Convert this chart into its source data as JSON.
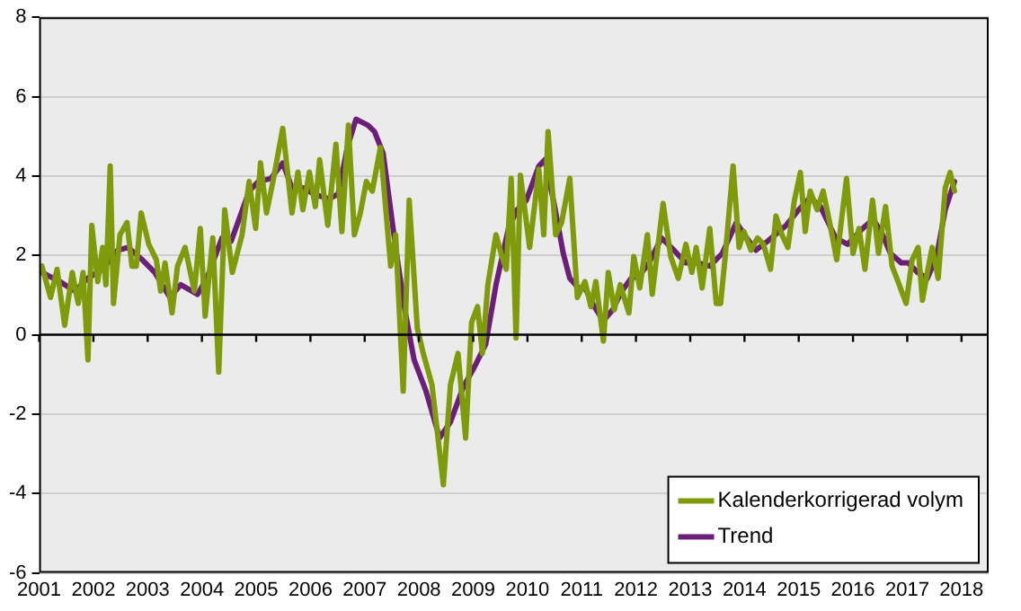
{
  "chart_data": {
    "type": "line",
    "xlim": [
      2001,
      2018.5
    ],
    "xticks": [
      2001,
      2002,
      2003,
      2004,
      2005,
      2006,
      2007,
      2008,
      2009,
      2010,
      2011,
      2012,
      2013,
      2014,
      2015,
      2016,
      2017,
      2018
    ],
    "ylim": [
      -6,
      8
    ],
    "yticks": [
      -6,
      -4,
      -2,
      0,
      2,
      4,
      6,
      8
    ],
    "grid": "y",
    "legend": "bottom right",
    "marker": "none",
    "line_style": "solid",
    "ref_lines": [
      {
        "axis": "y",
        "value": 0,
        "color": "#000000"
      }
    ],
    "series": [
      {
        "name": "Kalenderkorrigerad volym",
        "color": "#7f9a0a",
        "x": [
          2001.05,
          2001.21,
          2001.33,
          2001.47,
          2001.61,
          2001.72,
          2001.81,
          2001.9,
          2001.97,
          2002.08,
          2002.17,
          2002.23,
          2002.31,
          2002.37,
          2002.49,
          2002.62,
          2002.71,
          2002.79,
          2002.88,
          2003.02,
          2003.16,
          2003.24,
          2003.32,
          2003.45,
          2003.55,
          2003.69,
          2003.86,
          2003.97,
          2004.06,
          2004.2,
          2004.31,
          2004.42,
          2004.56,
          2004.74,
          2004.87,
          2004.99,
          2005.08,
          2005.19,
          2005.32,
          2005.49,
          2005.66,
          2005.77,
          2005.86,
          2005.98,
          2006.09,
          2006.17,
          2006.32,
          2006.47,
          2006.58,
          2006.7,
          2006.81,
          2006.92,
          2007.03,
          2007.14,
          2007.29,
          2007.48,
          2007.57,
          2007.71,
          2007.82,
          2007.97,
          2008.08,
          2008.24,
          2008.45,
          2008.58,
          2008.72,
          2008.86,
          2008.97,
          2009.08,
          2009.17,
          2009.27,
          2009.42,
          2009.53,
          2009.61,
          2009.7,
          2009.79,
          2009.87,
          2010.04,
          2010.21,
          2010.3,
          2010.38,
          2010.52,
          2010.63,
          2010.78,
          2010.92,
          2011.06,
          2011.17,
          2011.26,
          2011.4,
          2011.49,
          2011.6,
          2011.71,
          2011.87,
          2011.96,
          2012.07,
          2012.21,
          2012.3,
          2012.5,
          2012.64,
          2012.78,
          2012.92,
          2013.03,
          2013.11,
          2013.22,
          2013.36,
          2013.48,
          2013.56,
          2013.65,
          2013.79,
          2013.9,
          2013.99,
          2014.12,
          2014.24,
          2014.35,
          2014.48,
          2014.58,
          2014.69,
          2014.8,
          2014.92,
          2015.03,
          2015.12,
          2015.21,
          2015.34,
          2015.45,
          2015.57,
          2015.7,
          2015.88,
          2016.0,
          2016.11,
          2016.22,
          2016.36,
          2016.47,
          2016.6,
          2016.72,
          2016.83,
          2016.98,
          2017.09,
          2017.2,
          2017.28,
          2017.37,
          2017.46,
          2017.57,
          2017.7,
          2017.79,
          2017.87
        ],
        "values": [
          1.73,
          0.94,
          1.65,
          0.24,
          1.57,
          0.79,
          1.57,
          -0.63,
          2.76,
          1.34,
          2.2,
          1.26,
          4.25,
          0.79,
          2.52,
          2.83,
          1.73,
          1.73,
          3.07,
          2.28,
          1.89,
          1.1,
          1.81,
          0.55,
          1.73,
          2.2,
          1.1,
          2.68,
          0.47,
          2.44,
          -0.94,
          3.15,
          1.57,
          2.52,
          3.86,
          2.68,
          4.33,
          3.07,
          3.94,
          5.2,
          3.07,
          4.1,
          3.15,
          4.1,
          3.23,
          4.41,
          2.76,
          4.8,
          2.6,
          5.28,
          2.52,
          3.07,
          3.86,
          3.62,
          4.72,
          1.73,
          2.52,
          -1.42,
          3.39,
          0.16,
          -0.47,
          -1.26,
          -3.78,
          -1.26,
          -0.47,
          -2.6,
          0.31,
          0.71,
          -0.47,
          1.26,
          2.52,
          1.97,
          1.65,
          3.94,
          -0.08,
          4.02,
          2.2,
          4.17,
          2.52,
          5.12,
          2.52,
          2.83,
          3.94,
          0.94,
          1.34,
          0.71,
          1.34,
          -0.16,
          1.57,
          0.63,
          1.26,
          0.55,
          1.97,
          1.18,
          2.52,
          1.02,
          3.31,
          1.97,
          1.42,
          2.28,
          1.57,
          2.2,
          1.18,
          2.68,
          0.79,
          0.79,
          2.05,
          4.25,
          2.2,
          2.6,
          2.13,
          2.44,
          2.28,
          1.65,
          2.99,
          2.52,
          2.2,
          3.39,
          4.09,
          2.6,
          3.62,
          3.15,
          3.62,
          2.83,
          1.89,
          3.94,
          2.05,
          2.68,
          1.65,
          3.39,
          2.05,
          3.23,
          1.73,
          1.34,
          0.79,
          1.89,
          2.2,
          0.87,
          1.57,
          2.2,
          1.42,
          3.7,
          4.09,
          3.62
        ]
      },
      {
        "name": "Trend",
        "color": "#6c1f78",
        "x": [
          2001.05,
          2001.38,
          2001.66,
          2001.89,
          2002.17,
          2002.45,
          2002.64,
          2002.9,
          2003.13,
          2003.41,
          2003.61,
          2003.92,
          2004.09,
          2004.37,
          2004.54,
          2004.87,
          2005.04,
          2005.27,
          2005.49,
          2005.66,
          2005.89,
          2006.06,
          2006.34,
          2006.51,
          2006.68,
          2006.84,
          2007.06,
          2007.18,
          2007.34,
          2007.57,
          2007.74,
          2007.91,
          2008.13,
          2008.38,
          2008.58,
          2008.81,
          2009.03,
          2009.23,
          2009.42,
          2009.65,
          2009.81,
          2009.98,
          2010.21,
          2010.32,
          2010.49,
          2010.66,
          2010.78,
          2010.94,
          2011.06,
          2011.23,
          2011.4,
          2011.57,
          2011.74,
          2011.91,
          2012.07,
          2012.24,
          2012.47,
          2012.7,
          2012.92,
          2013.15,
          2013.36,
          2013.59,
          2013.85,
          2014.04,
          2014.21,
          2014.43,
          2014.77,
          2015.0,
          2015.21,
          2015.4,
          2015.68,
          2015.9,
          2016.18,
          2016.37,
          2016.52,
          2016.69,
          2016.89,
          2017.02,
          2017.19,
          2017.37,
          2017.54,
          2017.7,
          2017.87
        ],
        "values": [
          1.57,
          1.34,
          1.1,
          1.42,
          1.65,
          2.13,
          2.2,
          1.89,
          1.57,
          0.94,
          1.26,
          1.02,
          1.42,
          2.44,
          2.36,
          3.62,
          3.86,
          3.94,
          4.33,
          3.7,
          3.7,
          3.54,
          3.43,
          3.54,
          4.72,
          5.43,
          5.28,
          5.12,
          4.57,
          2.2,
          0.63,
          -0.63,
          -1.42,
          -2.6,
          -2.2,
          -1.34,
          -0.79,
          -0.24,
          1.26,
          2.68,
          3.15,
          3.39,
          4.25,
          4.41,
          3.31,
          2.05,
          1.42,
          1.18,
          1.18,
          0.71,
          0.35,
          0.63,
          1.1,
          1.42,
          1.5,
          1.81,
          2.44,
          2.13,
          1.81,
          1.81,
          1.73,
          2.05,
          2.83,
          2.44,
          2.13,
          2.36,
          2.76,
          3.15,
          3.46,
          3.23,
          2.44,
          2.28,
          2.68,
          2.91,
          2.6,
          2.05,
          1.81,
          1.81,
          1.57,
          1.42,
          1.97,
          3.15,
          3.86
        ]
      }
    ]
  }
}
